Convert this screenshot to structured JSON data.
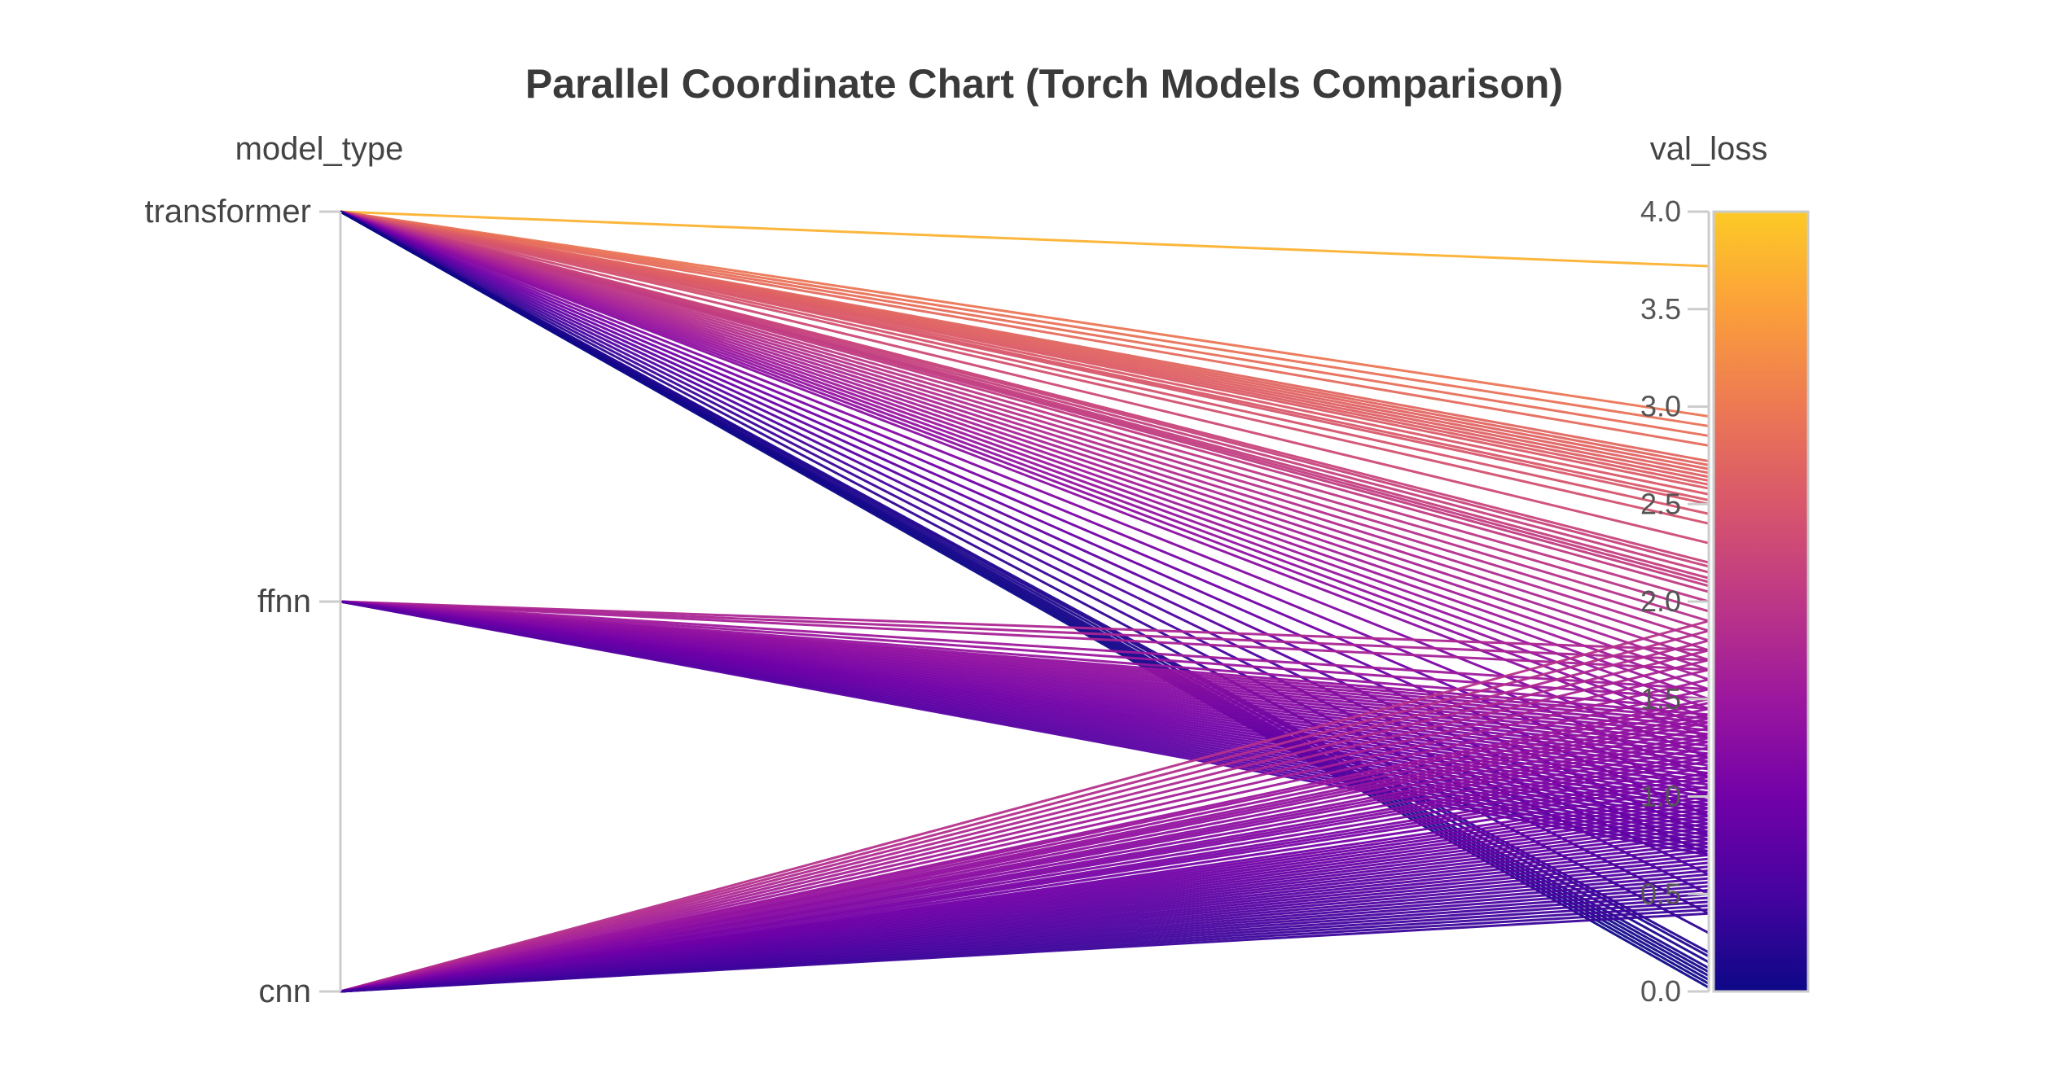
{
  "chart_data": {
    "type": "parallel_coordinates",
    "title": "Parallel Coordinate Chart (Torch Models Comparison)",
    "dimensions": [
      {
        "name": "model_type",
        "kind": "categorical",
        "categories": [
          "transformer",
          "ffnn",
          "cnn"
        ]
      },
      {
        "name": "val_loss",
        "kind": "numeric",
        "range": [
          0,
          4
        ],
        "ticks": [
          "0.0",
          "0.5",
          "1.0",
          "1.5",
          "2.0",
          "2.5",
          "3.0",
          "3.5",
          "4.0"
        ]
      }
    ],
    "colorscale": {
      "name": "plasma",
      "stops": [
        "#0d0887",
        "#46039f",
        "#7201a8",
        "#9c179e",
        "#bd3786",
        "#d8576b",
        "#ed7953",
        "#fb9f3a",
        "#fdca26"
      ],
      "range": [
        0,
        4
      ],
      "colorbar": "right"
    },
    "series": [
      {
        "category": "transformer",
        "val_loss": [
          3.72,
          2.95,
          2.9,
          2.85,
          2.8,
          2.72,
          2.7,
          2.68,
          2.66,
          2.64,
          2.62,
          2.6,
          2.58,
          2.55,
          2.52,
          2.5,
          2.45,
          2.4,
          2.3,
          2.2,
          2.18,
          2.15,
          2.12,
          2.1,
          2.08,
          2.05,
          2.0,
          1.95,
          1.9,
          1.85,
          1.8,
          1.75,
          1.7,
          1.65,
          1.6,
          1.55,
          1.5,
          1.45,
          1.4,
          1.35,
          1.3,
          1.2,
          1.1,
          1.0,
          0.9,
          0.8,
          0.7,
          0.6,
          0.5,
          0.4,
          0.3,
          0.2,
          0.18,
          0.15,
          0.12,
          0.1,
          0.08,
          0.06,
          0.04,
          0.02
        ]
      },
      {
        "category": "ffnn",
        "val_loss": [
          1.75,
          1.7,
          1.65,
          1.55,
          1.5,
          1.45,
          1.42,
          1.4,
          1.38,
          1.36,
          1.34,
          1.32,
          1.3,
          1.28,
          1.26,
          1.24,
          1.22,
          1.2,
          1.18,
          1.16,
          1.14,
          1.12,
          1.1,
          1.08,
          1.06,
          1.04,
          1.02,
          1.0,
          0.98,
          0.96,
          0.94,
          0.92,
          0.9,
          0.88,
          0.86,
          0.84,
          0.82,
          0.8,
          0.78,
          0.76,
          0.74,
          0.72,
          0.7
        ]
      },
      {
        "category": "cnn",
        "val_loss": [
          1.9,
          1.85,
          1.8,
          1.75,
          1.7,
          1.65,
          1.6,
          1.55,
          1.5,
          1.48,
          1.45,
          1.42,
          1.4,
          1.38,
          1.35,
          1.32,
          1.3,
          1.28,
          1.25,
          1.22,
          1.2,
          1.18,
          1.15,
          1.12,
          1.1,
          1.08,
          1.05,
          1.02,
          1.0,
          0.98,
          0.96,
          0.94,
          0.92,
          0.9,
          0.88,
          0.86,
          0.84,
          0.82,
          0.8,
          0.78,
          0.76,
          0.74,
          0.72,
          0.7,
          0.68,
          0.66,
          0.64,
          0.62,
          0.6,
          0.58,
          0.56,
          0.54,
          0.52,
          0.5,
          0.48,
          0.46,
          0.44,
          0.42,
          0.4
        ]
      }
    ]
  }
}
